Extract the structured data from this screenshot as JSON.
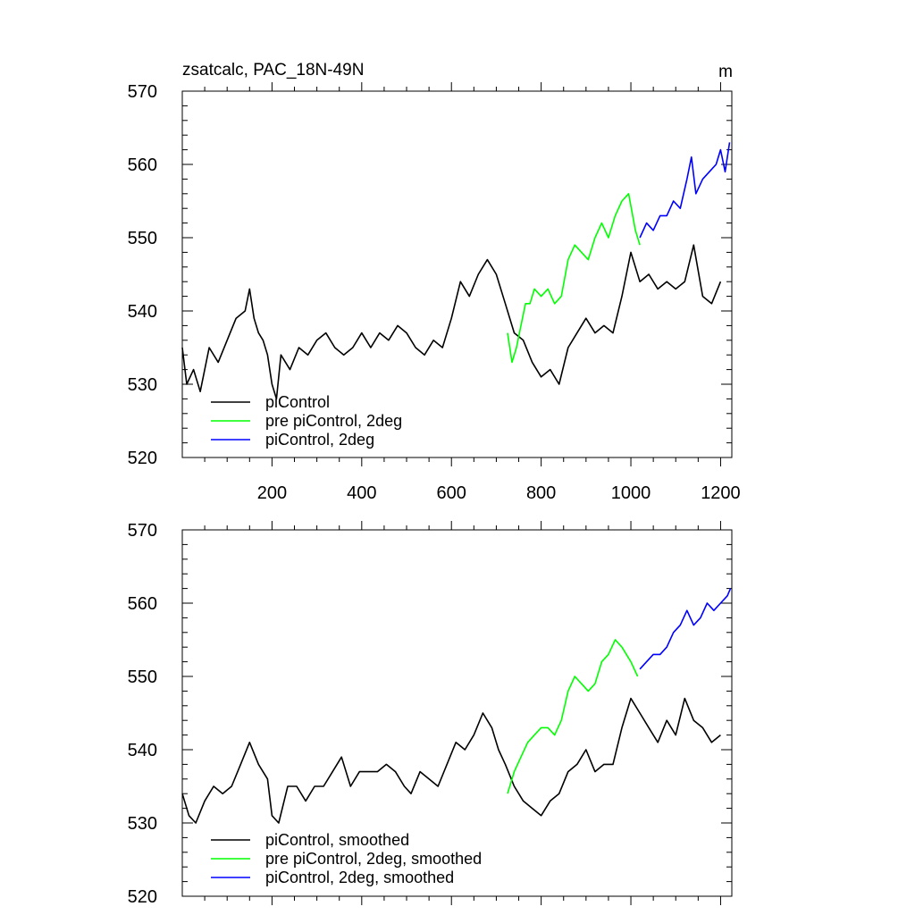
{
  "chart_data": [
    {
      "type": "line",
      "title": "zsatcalc, PAC_18N-49N",
      "units": "m",
      "xlim": [
        0,
        1225
      ],
      "ylim": [
        520,
        570
      ],
      "xticks": [
        200,
        400,
        600,
        800,
        1000,
        1200
      ],
      "xtick_labels": [
        "200",
        "400",
        "600",
        "800",
        "1000",
        "1200"
      ],
      "yticks": [
        520,
        530,
        540,
        550,
        560,
        570
      ],
      "ytick_labels": [
        "520",
        "530",
        "540",
        "550",
        "560",
        "570"
      ],
      "grid": false,
      "legend_position": "bottom-left",
      "series": [
        {
          "name": "piControl",
          "color": "#000000",
          "x": [
            0,
            10,
            25,
            40,
            60,
            80,
            100,
            120,
            140,
            150,
            160,
            170,
            180,
            190,
            200,
            210,
            220,
            240,
            260,
            280,
            300,
            320,
            340,
            360,
            380,
            400,
            420,
            440,
            460,
            480,
            500,
            520,
            540,
            560,
            580,
            600,
            620,
            640,
            660,
            680,
            700,
            720,
            740,
            760,
            780,
            800,
            820,
            840,
            860,
            880,
            900,
            920,
            940,
            960,
            980,
            1000,
            1020,
            1040,
            1060,
            1080,
            1100,
            1120,
            1140,
            1160,
            1180,
            1200
          ],
          "y": [
            535,
            530,
            532,
            529,
            535,
            533,
            536,
            539,
            540,
            543,
            539,
            537,
            536,
            534,
            530,
            528,
            534,
            532,
            535,
            534,
            536,
            537,
            535,
            534,
            535,
            537,
            535,
            537,
            536,
            538,
            537,
            535,
            534,
            536,
            535,
            539,
            544,
            542,
            545,
            547,
            545,
            541,
            537,
            536,
            533,
            531,
            532,
            530,
            535,
            537,
            539,
            537,
            538,
            537,
            542,
            548,
            544,
            545,
            543,
            544,
            543,
            544,
            549,
            542,
            541,
            544
          ]
        },
        {
          "name": "pre piControl, 2deg",
          "color": "#00ff00",
          "x": [
            725,
            735,
            745,
            755,
            765,
            775,
            785,
            800,
            815,
            830,
            845,
            860,
            875,
            890,
            905,
            920,
            935,
            950,
            965,
            980,
            995,
            1010,
            1020
          ],
          "y": [
            537,
            533,
            535,
            538,
            541,
            541,
            543,
            542,
            543,
            541,
            542,
            547,
            549,
            548,
            547,
            550,
            552,
            550,
            553,
            555,
            556,
            551,
            549
          ]
        },
        {
          "name": "piControl, 2deg",
          "color": "#0000ff",
          "x": [
            1020,
            1035,
            1050,
            1065,
            1080,
            1095,
            1110,
            1125,
            1135,
            1145,
            1160,
            1175,
            1190,
            1200,
            1210,
            1220
          ],
          "y": [
            550,
            552,
            551,
            553,
            553,
            555,
            554,
            558,
            561,
            556,
            558,
            559,
            560,
            562,
            559,
            563
          ]
        }
      ]
    },
    {
      "type": "line",
      "xlim": [
        0,
        1225
      ],
      "ylim": [
        520,
        570
      ],
      "yticks": [
        520,
        530,
        540,
        550,
        560,
        570
      ],
      "ytick_labels": [
        "520",
        "530",
        "540",
        "550",
        "560",
        "570"
      ],
      "grid": false,
      "legend_position": "bottom-left",
      "series": [
        {
          "name": "piControl, smoothed",
          "color": "#000000",
          "x": [
            0,
            15,
            30,
            50,
            70,
            90,
            110,
            130,
            150,
            170,
            190,
            200,
            215,
            235,
            255,
            275,
            295,
            315,
            335,
            355,
            375,
            395,
            415,
            435,
            455,
            475,
            495,
            510,
            530,
            550,
            570,
            590,
            610,
            630,
            650,
            670,
            690,
            705,
            720,
            740,
            760,
            780,
            800,
            820,
            840,
            860,
            880,
            900,
            920,
            940,
            960,
            980,
            1000,
            1020,
            1040,
            1060,
            1080,
            1100,
            1120,
            1140,
            1160,
            1180,
            1200
          ],
          "y": [
            534,
            531,
            530,
            533,
            535,
            534,
            535,
            538,
            541,
            538,
            536,
            531,
            530,
            535,
            535,
            533,
            535,
            535,
            537,
            539,
            535,
            537,
            537,
            537,
            538,
            537,
            535,
            534,
            537,
            536,
            535,
            538,
            541,
            540,
            542,
            545,
            543,
            540,
            538,
            535,
            533,
            532,
            531,
            533,
            534,
            537,
            538,
            540,
            537,
            538,
            538,
            543,
            547,
            545,
            543,
            541,
            544,
            542,
            547,
            544,
            543,
            541,
            542
          ]
        },
        {
          "name": "pre piControl, 2deg, smoothed",
          "color": "#00ff00",
          "x": [
            725,
            740,
            755,
            770,
            785,
            800,
            815,
            830,
            845,
            860,
            875,
            890,
            905,
            920,
            935,
            950,
            965,
            980,
            1000,
            1015
          ],
          "y": [
            534,
            537,
            539,
            541,
            542,
            543,
            543,
            542,
            544,
            548,
            550,
            549,
            548,
            549,
            552,
            553,
            555,
            554,
            552,
            550
          ]
        },
        {
          "name": "piControl, 2deg, smoothed",
          "color": "#0000ff",
          "x": [
            1020,
            1035,
            1050,
            1065,
            1080,
            1095,
            1110,
            1125,
            1140,
            1155,
            1170,
            1185,
            1200,
            1215,
            1222
          ],
          "y": [
            551,
            552,
            553,
            553,
            554,
            556,
            557,
            559,
            557,
            558,
            560,
            559,
            560,
            561,
            562
          ]
        }
      ]
    }
  ]
}
